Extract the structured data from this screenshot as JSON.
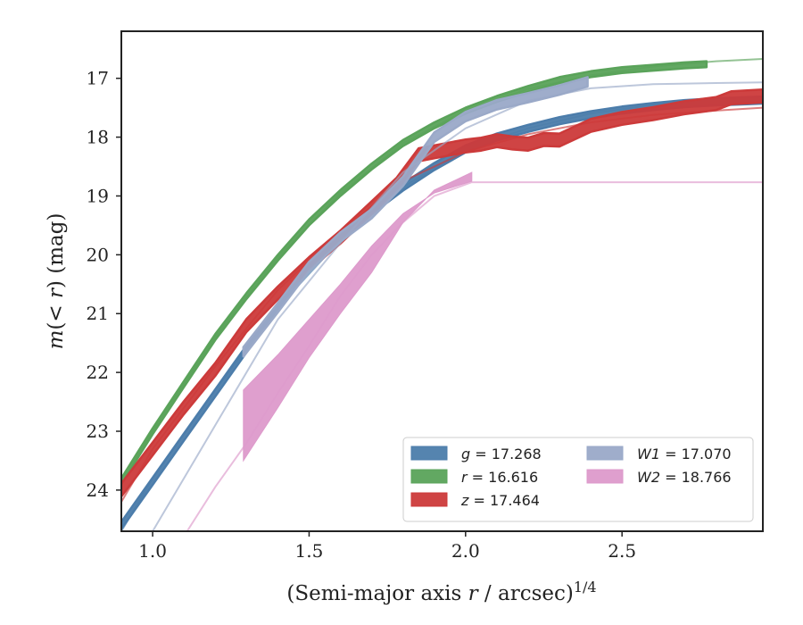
{
  "chart_data": {
    "type": "line",
    "xlabel": "(Semi-major axis r / arcsec)^{1/4}",
    "ylabel": "m(< r) (mag)",
    "xlim": [
      0.9,
      2.95
    ],
    "ylim": [
      24.7,
      16.2
    ],
    "y_inverted": true,
    "xticks": [
      1.0,
      1.5,
      2.0,
      2.5
    ],
    "xtick_labels": [
      "1.0",
      "1.5",
      "2.0",
      "2.5"
    ],
    "yticks": [
      17,
      18,
      19,
      20,
      21,
      22,
      23,
      24
    ],
    "ytick_labels": [
      "17",
      "18",
      "19",
      "20",
      "21",
      "22",
      "23",
      "24"
    ],
    "grid": false,
    "legend_position": "lower-right",
    "series": [
      {
        "name": "g = 17.268",
        "legend_symbol": "g",
        "legend_value": "= 17.268",
        "color": "#4c7dab",
        "band_width": 0.12,
        "x": [
          0.9,
          1.0,
          1.1,
          1.2,
          1.3,
          1.4,
          1.5,
          1.6,
          1.7,
          1.8,
          1.9,
          2.0,
          2.1,
          2.2,
          2.3,
          2.4,
          2.5,
          2.6,
          2.7,
          2.8,
          2.9,
          2.95
        ],
        "y": [
          24.6,
          23.85,
          23.1,
          22.35,
          21.6,
          20.9,
          20.2,
          19.7,
          19.25,
          18.85,
          18.5,
          18.2,
          18.0,
          17.85,
          17.72,
          17.62,
          17.54,
          17.48,
          17.43,
          17.4,
          17.38,
          17.37
        ],
        "model_x": [
          0.9,
          1.0,
          1.2,
          1.4,
          1.6,
          1.8,
          2.0,
          2.2,
          2.4,
          2.6,
          2.8,
          2.95
        ],
        "model_y": [
          24.7,
          23.8,
          22.3,
          20.9,
          19.75,
          18.85,
          18.2,
          17.85,
          17.6,
          17.45,
          17.37,
          17.34
        ]
      },
      {
        "name": "r = 16.616",
        "legend_symbol": "r",
        "legend_value": "= 16.616",
        "color": "#5aa35a",
        "band_width": 0.1,
        "x": [
          0.9,
          1.0,
          1.1,
          1.2,
          1.3,
          1.4,
          1.5,
          1.6,
          1.7,
          1.8,
          1.9,
          2.0,
          2.1,
          2.2,
          2.3,
          2.4,
          2.5,
          2.6,
          2.7,
          2.77
        ],
        "y": [
          23.85,
          23.0,
          22.2,
          21.4,
          20.7,
          20.05,
          19.45,
          18.95,
          18.5,
          18.1,
          17.8,
          17.55,
          17.35,
          17.18,
          17.03,
          16.93,
          16.86,
          16.82,
          16.78,
          16.76
        ],
        "model_x": [
          0.9,
          1.0,
          1.2,
          1.4,
          1.6,
          1.8,
          2.0,
          2.2,
          2.4,
          2.6,
          2.8,
          2.95
        ],
        "model_y": [
          23.9,
          23.0,
          21.4,
          20.05,
          18.95,
          18.1,
          17.55,
          17.18,
          16.95,
          16.8,
          16.71,
          16.67
        ]
      },
      {
        "name": "z = 17.464",
        "legend_symbol": "z",
        "legend_value": "= 17.464",
        "color": "#cc3a3a",
        "band_width": 0.22,
        "x": [
          0.9,
          1.0,
          1.1,
          1.2,
          1.3,
          1.4,
          1.5,
          1.6,
          1.7,
          1.78,
          1.85,
          1.9,
          2.0,
          2.05,
          2.1,
          2.15,
          2.2,
          2.25,
          2.3,
          2.4,
          2.5,
          2.6,
          2.7,
          2.8,
          2.85,
          2.95
        ],
        "y": [
          24.0,
          23.3,
          22.6,
          21.95,
          21.2,
          20.65,
          20.15,
          19.7,
          19.2,
          18.8,
          18.3,
          18.25,
          18.15,
          18.12,
          18.06,
          18.1,
          18.12,
          18.04,
          18.05,
          17.8,
          17.68,
          17.6,
          17.5,
          17.43,
          17.33,
          17.3
        ],
        "model_x": [
          0.9,
          1.0,
          1.2,
          1.4,
          1.6,
          1.8,
          2.0,
          2.2,
          2.4,
          2.6,
          2.8,
          2.95
        ],
        "model_y": [
          24.2,
          23.3,
          21.9,
          20.6,
          19.6,
          18.75,
          18.25,
          17.95,
          17.75,
          17.62,
          17.55,
          17.5
        ]
      },
      {
        "name": "W1 = 17.070",
        "legend_symbol": "W1",
        "legend_value": "= 17.070",
        "color": "#9aa9c8",
        "band_width": 0.16,
        "x": [
          1.29,
          1.4,
          1.5,
          1.6,
          1.7,
          1.8,
          1.9,
          2.0,
          2.1,
          2.2,
          2.3,
          2.39
        ],
        "y": [
          21.65,
          20.9,
          20.2,
          19.7,
          19.3,
          18.75,
          18.0,
          17.65,
          17.45,
          17.33,
          17.2,
          17.06
        ],
        "model_x": [
          1.0,
          1.2,
          1.4,
          1.6,
          1.8,
          2.0,
          2.2,
          2.4,
          2.6,
          2.8,
          2.95
        ],
        "model_y": [
          24.7,
          22.9,
          21.1,
          19.8,
          18.6,
          17.85,
          17.38,
          17.17,
          17.1,
          17.08,
          17.07
        ]
      },
      {
        "name": "W2 = 18.766",
        "legend_symbol": "W2",
        "legend_value": "= 18.766",
        "color": "#dd9acb",
        "band_x": [
          1.29,
          1.4,
          1.5,
          1.6,
          1.7,
          1.8,
          1.9,
          2.02
        ],
        "band_lower": [
          23.5,
          22.6,
          21.75,
          21.0,
          20.3,
          19.45,
          18.9,
          18.6
        ],
        "band_upper": [
          22.3,
          21.7,
          21.1,
          20.5,
          19.85,
          19.3,
          18.95,
          18.75
        ],
        "model_x": [
          1.11,
          1.2,
          1.3,
          1.4,
          1.5,
          1.6,
          1.7,
          1.8,
          1.9,
          2.02,
          2.5,
          2.95
        ],
        "model_y": [
          24.7,
          23.95,
          23.2,
          22.35,
          21.55,
          20.7,
          20.0,
          19.45,
          19.0,
          18.766,
          18.766,
          18.766
        ]
      }
    ]
  }
}
